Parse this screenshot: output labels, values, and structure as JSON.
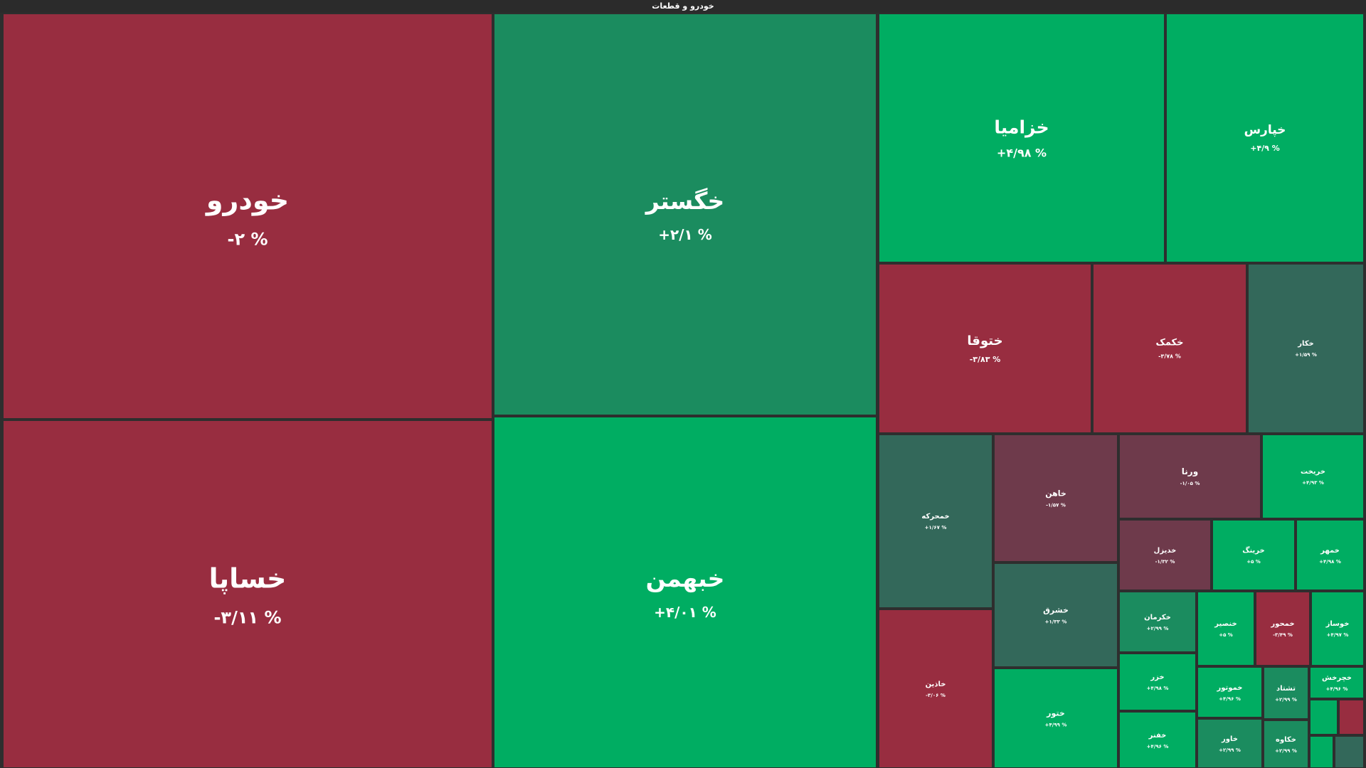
{
  "header": {
    "title": "خودرو و قطعات"
  },
  "colors": {
    "strong_up": "#00ad62",
    "mid_up": "#1b8c5f",
    "weak_up": "#33685a",
    "weak_down": "#6e3a4b",
    "strong_down": "#982d40",
    "background": "#2e2e2e"
  },
  "chart_data": {
    "type": "treemap",
    "title": "خودرو و قطعات",
    "tiles": [
      {
        "name": "خودرو",
        "change": -2,
        "label": "-۲ %"
      },
      {
        "name": "خساپا",
        "change": -3.11,
        "label": "-۳/۱۱ %"
      },
      {
        "name": "خگستر",
        "change": 2.1,
        "label": "+۲/۱ %"
      },
      {
        "name": "خبهمن",
        "change": 4.01,
        "label": "+۴/۰۱ %"
      },
      {
        "name": "خزامیا",
        "change": 4.98,
        "label": "+۴/۹۸ %"
      },
      {
        "name": "خپارس",
        "change": 4.9,
        "label": "+۴/۹ %"
      },
      {
        "name": "ختوقا",
        "change": -3.83,
        "label": "-۳/۸۳ %"
      },
      {
        "name": "خکمک",
        "change": -3.78,
        "label": "-۳/۷۸ %"
      },
      {
        "name": "خکار",
        "change": 1.59,
        "label": "+۱/۵۹ %"
      },
      {
        "name": "خمحرکه",
        "change": 1.67,
        "label": "+۱/۶۷ %"
      },
      {
        "name": "خاهن",
        "change": -1.57,
        "label": "-۱/۵۷ %"
      },
      {
        "name": "ورنا",
        "change": -1.05,
        "label": "-۱/۰۵ %"
      },
      {
        "name": "خریخت",
        "change": 4.93,
        "label": "+۴/۹۳ %"
      },
      {
        "name": "خدیزل",
        "change": -1.32,
        "label": "-۱/۳۲ %"
      },
      {
        "name": "خرینگ",
        "change": 5,
        "label": "+۵ %"
      },
      {
        "name": "خمهر",
        "change": 4.98,
        "label": "+۴/۹۸ %"
      },
      {
        "name": "خاذین",
        "change": -3.06,
        "label": "-۳/۰۶ %"
      },
      {
        "name": "خشرق",
        "change": 1.33,
        "label": "+۱/۳۳ %"
      },
      {
        "name": "ختور",
        "change": 4.99,
        "label": "+۴/۹۹ %"
      },
      {
        "name": "خکرمان",
        "change": 2.99,
        "label": "+۲/۹۹ %"
      },
      {
        "name": "خنصیر",
        "change": 5,
        "label": "+۵ %"
      },
      {
        "name": "خمحور",
        "change": -3.49,
        "label": "-۳/۴۹ %"
      },
      {
        "name": "خوساز",
        "change": 4.97,
        "label": "+۴/۹۷ %"
      },
      {
        "name": "خزر",
        "change": 4.98,
        "label": "+۴/۹۸ %"
      },
      {
        "name": "خموتور",
        "change": 4.96,
        "label": "+۴/۹۶ %"
      },
      {
        "name": "تشتاد",
        "change": 2.99,
        "label": "+۲/۹۹ %"
      },
      {
        "name": "خچرخش",
        "change": 4.96,
        "label": "+۴/۹۶ %"
      },
      {
        "name": "خفنر",
        "change": 4.96,
        "label": "+۴/۹۶ %"
      },
      {
        "name": "خاور",
        "change": 2.99,
        "label": "+۲/۹۹ %"
      },
      {
        "name": "خکاوه",
        "change": 2.99,
        "label": "+۲/۹۹ %"
      },
      {
        "name": "",
        "change": 5,
        "label": ""
      },
      {
        "name": "",
        "change": -3,
        "label": ""
      },
      {
        "name": "",
        "change": 5,
        "label": ""
      },
      {
        "name": "",
        "change": 1.5,
        "label": ""
      }
    ]
  }
}
